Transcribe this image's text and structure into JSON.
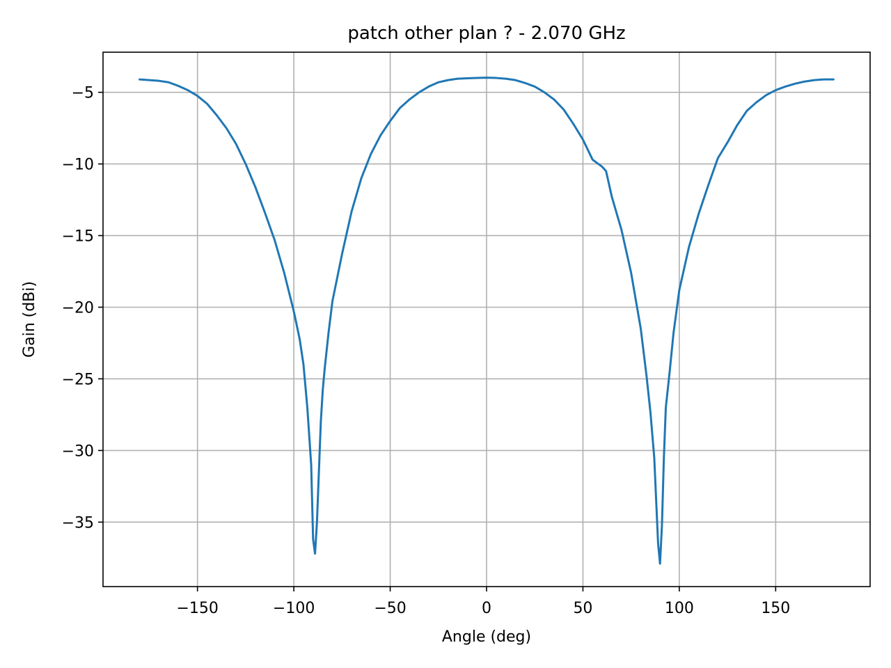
{
  "chart_data": {
    "type": "line",
    "title": "patch other plan ? - 2.070 GHz",
    "xlabel": "Angle (deg)",
    "ylabel": "Gain (dBi)",
    "xlim": [
      -199,
      199
    ],
    "ylim": [
      -39.5,
      -2.2
    ],
    "xticks": [
      -150,
      -100,
      -50,
      0,
      50,
      100,
      150
    ],
    "yticks": [
      -5,
      -10,
      -15,
      -20,
      -25,
      -30,
      -35
    ],
    "xtick_labels": [
      "−150",
      "−100",
      "−50",
      "0",
      "50",
      "100",
      "150"
    ],
    "ytick_labels": [
      "−5",
      "−10",
      "−15",
      "−20",
      "−25",
      "−30",
      "−35"
    ],
    "grid": true,
    "colors": {
      "series": "#1f77b4"
    },
    "series": [
      {
        "x": [
          -180,
          -175,
          -170,
          -165,
          -160,
          -155,
          -150,
          -145,
          -140,
          -135,
          -130,
          -125,
          -120,
          -115,
          -110,
          -105,
          -100,
          -97,
          -95,
          -93,
          -91,
          -90,
          -89,
          -88,
          -87,
          -86,
          -85,
          -84,
          -82,
          -80,
          -75,
          -70,
          -65,
          -60,
          -55,
          -50,
          -45,
          -40,
          -35,
          -30,
          -25,
          -20,
          -15,
          -10,
          -5,
          0,
          5,
          10,
          15,
          20,
          25,
          30,
          35,
          40,
          45,
          50,
          55,
          60,
          62,
          65,
          70,
          75,
          80,
          83,
          85,
          87,
          88,
          89,
          90,
          91,
          92,
          93,
          95,
          97,
          100,
          105,
          110,
          115,
          120,
          125,
          130,
          135,
          140,
          145,
          150,
          155,
          160,
          165,
          170,
          175,
          180
        ],
        "y": [
          -4.1,
          -4.15,
          -4.2,
          -4.3,
          -4.55,
          -4.85,
          -5.25,
          -5.8,
          -6.6,
          -7.5,
          -8.6,
          -10.0,
          -11.6,
          -13.4,
          -15.3,
          -17.6,
          -20.3,
          -22.2,
          -24.0,
          -27.0,
          -31.0,
          -36.2,
          -37.2,
          -35.0,
          -31.5,
          -28.0,
          -25.8,
          -24.3,
          -21.8,
          -19.6,
          -16.3,
          -13.3,
          -11.0,
          -9.3,
          -8.0,
          -7.0,
          -6.1,
          -5.5,
          -5.0,
          -4.6,
          -4.3,
          -4.15,
          -4.05,
          -4.02,
          -4.0,
          -3.98,
          -4.0,
          -4.05,
          -4.15,
          -4.35,
          -4.6,
          -5.0,
          -5.5,
          -6.2,
          -7.2,
          -8.3,
          -9.7,
          -10.2,
          -10.5,
          -12.3,
          -14.6,
          -17.6,
          -21.5,
          -24.8,
          -27.3,
          -30.5,
          -33.5,
          -36.5,
          -37.9,
          -35.2,
          -30.5,
          -27.0,
          -24.5,
          -21.8,
          -18.8,
          -15.8,
          -13.5,
          -11.5,
          -9.6,
          -8.5,
          -7.3,
          -6.3,
          -5.7,
          -5.2,
          -4.85,
          -4.6,
          -4.4,
          -4.25,
          -4.15,
          -4.1,
          -4.1
        ]
      }
    ]
  }
}
